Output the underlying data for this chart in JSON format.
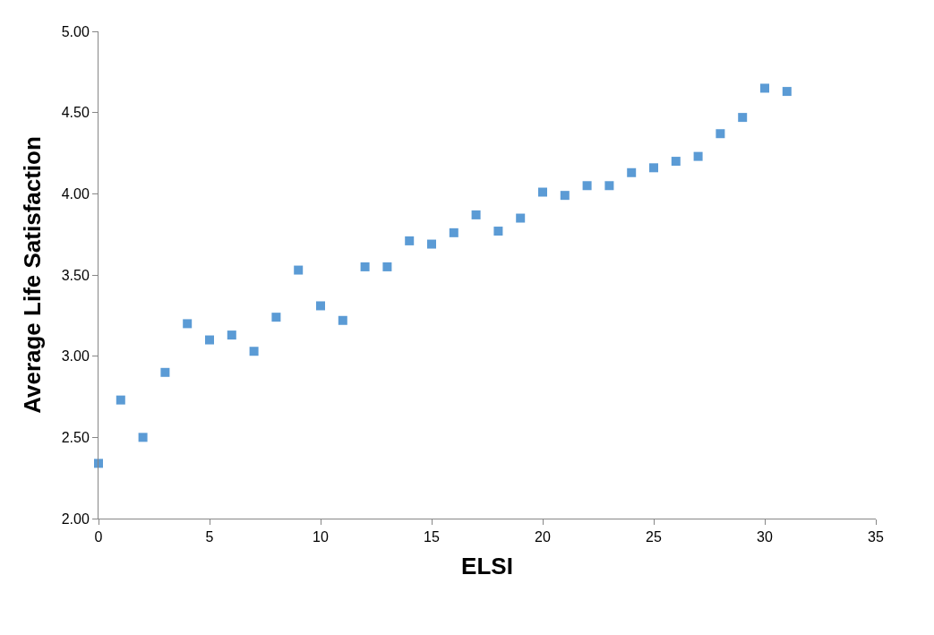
{
  "chart_data": {
    "type": "scatter",
    "xlabel": "ELSI",
    "ylabel": "Average Life Satisfaction",
    "marker": "square",
    "x": [
      0,
      1,
      2,
      3,
      4,
      5,
      6,
      7,
      8,
      9,
      10,
      11,
      12,
      13,
      14,
      15,
      16,
      17,
      18,
      19,
      20,
      21,
      22,
      23,
      24,
      25,
      26,
      27,
      28,
      29,
      30,
      31
    ],
    "series": [
      {
        "color": "#5b9bd5",
        "values": [
          2.34,
          2.73,
          2.5,
          2.9,
          3.2,
          3.1,
          3.13,
          3.03,
          3.24,
          3.53,
          3.31,
          3.22,
          3.55,
          3.55,
          3.71,
          3.69,
          3.76,
          3.87,
          3.77,
          3.85,
          4.01,
          3.99,
          4.05,
          4.05,
          4.13,
          4.16,
          4.2,
          4.23,
          4.37,
          4.47,
          4.65,
          4.63
        ]
      }
    ],
    "xlim": [
      0,
      35
    ],
    "xticks": [
      0,
      5,
      10,
      15,
      20,
      25,
      30,
      35
    ],
    "ylim": [
      2,
      5
    ],
    "yticks": [
      {
        "value": 2,
        "label": "2.00"
      },
      {
        "value": 2.5,
        "label": "2.50"
      },
      {
        "value": 3,
        "label": "3.00"
      },
      {
        "value": 3.5,
        "label": "3.50"
      },
      {
        "value": 4,
        "label": "4.00"
      },
      {
        "value": 4.5,
        "label": "4.50"
      },
      {
        "value": 5,
        "label": "5.00"
      }
    ]
  }
}
